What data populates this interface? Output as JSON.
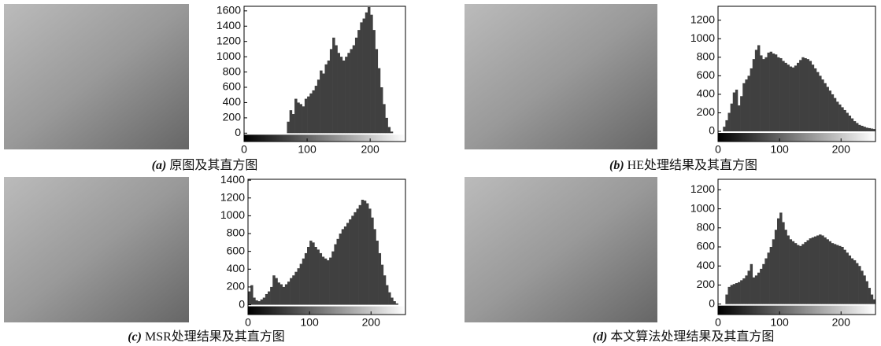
{
  "chart_data": [
    {
      "type": "histogram",
      "caption_label": "(a)",
      "title": "原图及其直方图",
      "color": "#404040",
      "bins": [
        0,
        4,
        8,
        12,
        16,
        20,
        24,
        28,
        32,
        36,
        40,
        44,
        48,
        52,
        56,
        60,
        64,
        68,
        72,
        76,
        80,
        84,
        88,
        92,
        96,
        100,
        104,
        108,
        112,
        116,
        120,
        124,
        128,
        132,
        136,
        140,
        144,
        148,
        152,
        156,
        160,
        164,
        168,
        172,
        176,
        180,
        184,
        188,
        192,
        196,
        200,
        204,
        208,
        212,
        216,
        220,
        224,
        228,
        232,
        236,
        240,
        244,
        248,
        252,
        256
      ],
      "values": [
        0,
        0,
        0,
        0,
        0,
        0,
        0,
        0,
        0,
        0,
        0,
        0,
        0,
        0,
        0,
        0,
        0,
        150,
        300,
        250,
        450,
        400,
        380,
        350,
        450,
        480,
        520,
        560,
        620,
        700,
        820,
        780,
        900,
        950,
        1100,
        1250,
        1150,
        1050,
        1000,
        950,
        1000,
        1050,
        1100,
        1150,
        1250,
        1350,
        1450,
        1500,
        1580,
        1650,
        1550,
        1350,
        1100,
        850,
        600,
        380,
        200,
        80,
        20,
        0,
        0,
        0,
        0,
        0
      ],
      "xlim": [
        0,
        256
      ],
      "xticks": [
        0,
        100,
        200
      ],
      "ylim": [
        -110,
        1660
      ],
      "yticks": [
        0,
        200,
        400,
        600,
        800,
        1000,
        1200,
        1400,
        1600
      ]
    },
    {
      "type": "histogram",
      "caption_label": "(b)",
      "title": "HE处理结果及其直方图",
      "color": "#404040",
      "bins": [
        0,
        4,
        8,
        12,
        16,
        20,
        24,
        28,
        32,
        36,
        40,
        44,
        48,
        52,
        56,
        60,
        64,
        68,
        72,
        76,
        80,
        84,
        88,
        92,
        96,
        100,
        104,
        108,
        112,
        116,
        120,
        124,
        128,
        132,
        136,
        140,
        144,
        148,
        152,
        156,
        160,
        164,
        168,
        172,
        176,
        180,
        184,
        188,
        192,
        196,
        200,
        204,
        208,
        212,
        216,
        220,
        224,
        228,
        232,
        236,
        240,
        244,
        248,
        252,
        256
      ],
      "values": [
        0,
        0,
        50,
        120,
        200,
        300,
        420,
        450,
        280,
        380,
        520,
        560,
        600,
        680,
        780,
        880,
        930,
        820,
        780,
        800,
        850,
        860,
        840,
        830,
        800,
        790,
        760,
        740,
        720,
        700,
        690,
        710,
        740,
        770,
        800,
        790,
        780,
        760,
        720,
        680,
        640,
        600,
        560,
        520,
        480,
        440,
        400,
        360,
        320,
        290,
        260,
        230,
        200,
        170,
        140,
        110,
        90,
        70,
        60,
        50,
        40,
        35,
        30,
        25
      ],
      "xlim": [
        0,
        256
      ],
      "xticks": [
        0,
        100,
        200
      ],
      "ylim": [
        -110,
        1350
      ],
      "yticks": [
        0,
        200,
        400,
        600,
        800,
        1000,
        1200
      ]
    },
    {
      "type": "histogram",
      "caption_label": "(c)",
      "title": "MSR处理结果及其直方图",
      "color": "#404040",
      "bins": [
        0,
        4,
        8,
        12,
        16,
        20,
        24,
        28,
        32,
        36,
        40,
        44,
        48,
        52,
        56,
        60,
        64,
        68,
        72,
        76,
        80,
        84,
        88,
        92,
        96,
        100,
        104,
        108,
        112,
        116,
        120,
        124,
        128,
        132,
        136,
        140,
        144,
        148,
        152,
        156,
        160,
        164,
        168,
        172,
        176,
        180,
        184,
        188,
        192,
        196,
        200,
        204,
        208,
        212,
        216,
        220,
        224,
        228,
        232,
        236,
        240,
        244,
        248,
        252,
        256
      ],
      "values": [
        150,
        220,
        80,
        50,
        40,
        60,
        80,
        120,
        150,
        200,
        330,
        300,
        250,
        230,
        200,
        230,
        260,
        300,
        330,
        370,
        410,
        460,
        520,
        580,
        650,
        720,
        700,
        650,
        620,
        580,
        540,
        520,
        500,
        530,
        600,
        680,
        740,
        800,
        850,
        880,
        920,
        960,
        1000,
        1040,
        1080,
        1120,
        1180,
        1170,
        1140,
        1080,
        980,
        850,
        720,
        580,
        450,
        330,
        220,
        140,
        80,
        40,
        15,
        0,
        0,
        0
      ],
      "xlim": [
        0,
        256
      ],
      "xticks": [
        0,
        100,
        200
      ],
      "ylim": [
        -110,
        1410
      ],
      "yticks": [
        0,
        200,
        400,
        600,
        800,
        1000,
        1200,
        1400
      ]
    },
    {
      "type": "histogram",
      "caption_label": "(d)",
      "title": "本文算法处理结果及其直方图",
      "color": "#404040",
      "bins": [
        0,
        4,
        8,
        12,
        16,
        20,
        24,
        28,
        32,
        36,
        40,
        44,
        48,
        52,
        56,
        60,
        64,
        68,
        72,
        76,
        80,
        84,
        88,
        92,
        96,
        100,
        104,
        108,
        112,
        116,
        120,
        124,
        128,
        132,
        136,
        140,
        144,
        148,
        152,
        156,
        160,
        164,
        168,
        172,
        176,
        180,
        184,
        188,
        192,
        196,
        200,
        204,
        208,
        212,
        216,
        220,
        224,
        228,
        232,
        236,
        240,
        244,
        248,
        252,
        256
      ],
      "values": [
        0,
        0,
        0,
        100,
        180,
        200,
        210,
        220,
        230,
        250,
        270,
        300,
        350,
        420,
        280,
        300,
        330,
        370,
        420,
        480,
        540,
        600,
        680,
        780,
        900,
        960,
        860,
        780,
        720,
        680,
        660,
        640,
        620,
        610,
        630,
        650,
        670,
        690,
        700,
        710,
        720,
        730,
        720,
        700,
        680,
        660,
        640,
        630,
        620,
        610,
        600,
        570,
        540,
        510,
        480,
        460,
        430,
        400,
        350,
        300,
        240,
        170,
        100,
        50
      ],
      "xlim": [
        0,
        256
      ],
      "xticks": [
        0,
        100,
        200
      ],
      "ylim": [
        -110,
        1310
      ],
      "yticks": [
        0,
        200,
        400,
        600,
        800,
        1000,
        1200
      ]
    }
  ]
}
